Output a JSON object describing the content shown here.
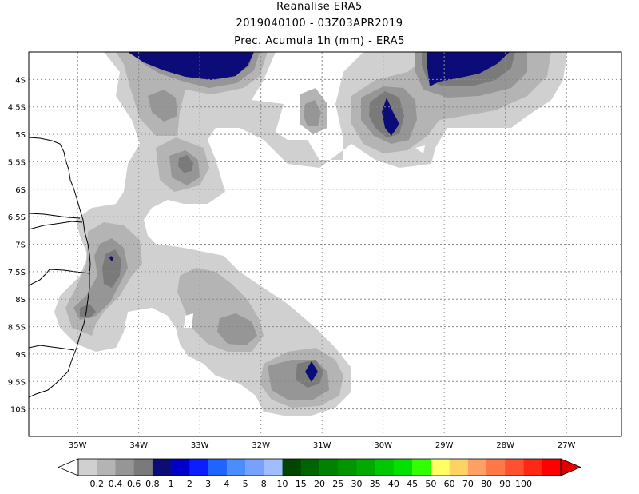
{
  "titles": [
    "Reanalise ERA5",
    "2019040100 - 03Z03APR2019",
    "Prec. Acumula 1h (mm) - ERA5"
  ],
  "map": {
    "lon_range": [
      -35.8,
      -26.1
    ],
    "lat_range": [
      -10.5,
      -3.5
    ],
    "lon_labels": [
      "35W",
      "34W",
      "33W",
      "32W",
      "31W",
      "30W",
      "29W",
      "28W",
      "27W"
    ],
    "lon_values": [
      -35,
      -34,
      -33,
      -32,
      -31,
      -30,
      -29,
      -28,
      -27
    ],
    "lat_labels": [
      "4S",
      "4.5S",
      "5S",
      "5.5S",
      "6S",
      "6.5S",
      "7S",
      "7.5S",
      "8S",
      "8.5S",
      "9S",
      "9.5S",
      "10S"
    ],
    "lat_values": [
      -4,
      -4.5,
      -5,
      -5.5,
      -6,
      -6.5,
      -7,
      -7.5,
      -8,
      -8.5,
      -9,
      -9.5,
      -10
    ],
    "grid": true
  },
  "colorbar": {
    "labels": [
      "0.2",
      "0.4",
      "0.6",
      "0.8",
      "1",
      "2",
      "3",
      "4",
      "5",
      "8",
      "10",
      "15",
      "20",
      "25",
      "30",
      "35",
      "40",
      "45",
      "50",
      "60",
      "70",
      "80",
      "90",
      "100"
    ],
    "colors": [
      "#d0d0d0",
      "#b4b4b4",
      "#969696",
      "#7a7a7a",
      "#0c0c78",
      "#0000c8",
      "#0a1eff",
      "#1e64ff",
      "#4b8cff",
      "#78a0ff",
      "#a0beff",
      "#004600",
      "#006400",
      "#008200",
      "#009600",
      "#00aa00",
      "#00c800",
      "#00e100",
      "#32ff00",
      "#ffff64",
      "#ffd264",
      "#ffa064",
      "#ff7846",
      "#ff5032",
      "#ff2814",
      "#ff0000"
    ],
    "under_color": "#ffffff",
    "over_color": "#e10000"
  }
}
